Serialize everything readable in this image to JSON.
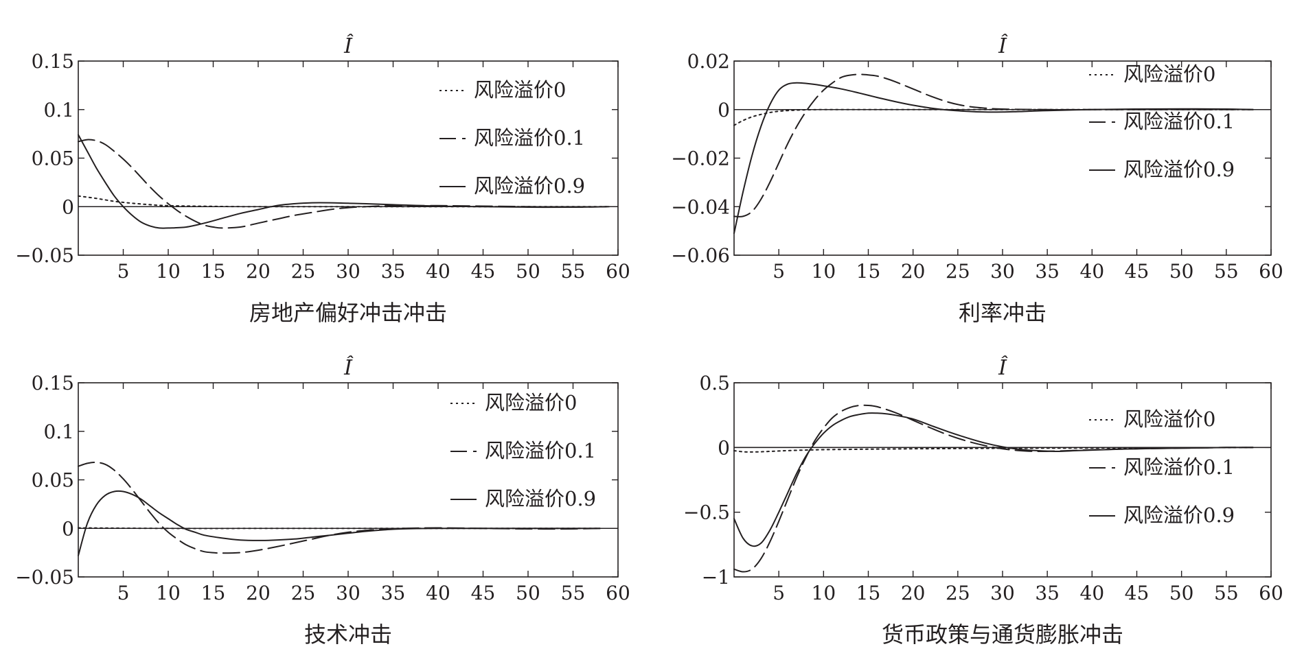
{
  "chart_data": [
    {
      "type": "line",
      "title": "Î",
      "xlabel": "房地产偏好冲击冲击",
      "ylabel": "",
      "xlim": [
        0,
        60
      ],
      "ylim": [
        -0.05,
        0.15
      ],
      "x_ticks": [
        5,
        10,
        15,
        20,
        25,
        30,
        35,
        40,
        45,
        50,
        55,
        60
      ],
      "x_tick_labels": [
        "5",
        "10",
        "15",
        "20",
        "25",
        "30",
        "35",
        "40",
        "45",
        "50",
        "55",
        "60"
      ],
      "y_ticks": [
        0.15,
        0.1,
        0.05,
        0,
        -0.05
      ],
      "y_tick_labels": [
        "0.15",
        "0.1",
        "0.05",
        "0",
        "−0.05"
      ],
      "legend_position": "top-right",
      "series": [
        {
          "name": "风险溢价0",
          "style": "dotted",
          "x": [
            0,
            2,
            4,
            6,
            8,
            10,
            15,
            20,
            30,
            40,
            50,
            59
          ],
          "values": [
            0.011,
            0.0085,
            0.0055,
            0.0035,
            0.002,
            0.001,
            0.0003,
            0,
            0,
            0,
            0,
            0
          ]
        },
        {
          "name": "风险溢价0.1",
          "style": "dashdot",
          "x": [
            0,
            1,
            2,
            3,
            4,
            5,
            6,
            7,
            8,
            9,
            10,
            11,
            12,
            13,
            14,
            15,
            16,
            18,
            20,
            22,
            24,
            26,
            28,
            30,
            32,
            35,
            40,
            45,
            50,
            55,
            59
          ],
          "values": [
            0.067,
            0.069,
            0.068,
            0.064,
            0.057,
            0.049,
            0.04,
            0.03,
            0.02,
            0.011,
            0.003,
            -0.004,
            -0.01,
            -0.015,
            -0.019,
            -0.021,
            -0.022,
            -0.021,
            -0.017,
            -0.013,
            -0.009,
            -0.006,
            -0.003,
            -0.001,
            0,
            0.001,
            0.001,
            0.0005,
            0,
            -0.0005,
            0
          ]
        },
        {
          "name": "风险溢价0.9",
          "style": "solid",
          "x": [
            0,
            1,
            2,
            3,
            4,
            5,
            6,
            7,
            8,
            9,
            10,
            12,
            14,
            16,
            18,
            20,
            22,
            24,
            26,
            28,
            30,
            32,
            35,
            40,
            45,
            50,
            55,
            59
          ],
          "values": [
            0.074,
            0.057,
            0.04,
            0.025,
            0.011,
            0,
            -0.009,
            -0.016,
            -0.02,
            -0.022,
            -0.022,
            -0.021,
            -0.017,
            -0.012,
            -0.007,
            -0.003,
            0.001,
            0.003,
            0.004,
            0.004,
            0.0035,
            0.003,
            0.002,
            0.0005,
            0,
            -0.0005,
            -0.0005,
            0
          ]
        }
      ]
    },
    {
      "type": "line",
      "title": "Î",
      "xlabel": "利率冲击",
      "ylabel": "",
      "xlim": [
        0,
        60
      ],
      "ylim": [
        -0.06,
        0.02
      ],
      "x_ticks": [
        5,
        10,
        15,
        20,
        25,
        30,
        35,
        40,
        45,
        50,
        55,
        60
      ],
      "x_tick_labels": [
        "5",
        "10",
        "15",
        "20",
        "25",
        "30",
        "35",
        "40",
        "45",
        "50",
        "55",
        "60"
      ],
      "y_ticks": [
        0.02,
        0,
        -0.02,
        -0.04,
        -0.06
      ],
      "y_tick_labels": [
        "0.02",
        "0",
        "−0.02",
        "−0.04",
        "−0.06"
      ],
      "legend_position": "top-right",
      "series": [
        {
          "name": "风险溢价0",
          "style": "dotted",
          "x": [
            0,
            1,
            2,
            3,
            4,
            5,
            6,
            8,
            10,
            15,
            20,
            30,
            40,
            50,
            58
          ],
          "values": [
            -0.0065,
            -0.0045,
            -0.003,
            -0.002,
            -0.0012,
            -0.0007,
            -0.0004,
            -0.0001,
            0,
            0,
            0,
            0,
            0,
            0,
            0
          ]
        },
        {
          "name": "风险溢价0.1",
          "style": "dashdot",
          "x": [
            0,
            1,
            2,
            3,
            4,
            5,
            6,
            7,
            8,
            9,
            10,
            11,
            12,
            13,
            14,
            15,
            16,
            17,
            18,
            20,
            22,
            24,
            26,
            28,
            30,
            35,
            40,
            45,
            50,
            58
          ],
          "values": [
            -0.044,
            -0.044,
            -0.042,
            -0.037,
            -0.03,
            -0.022,
            -0.014,
            -0.007,
            -0.001,
            0.004,
            0.008,
            0.011,
            0.0133,
            0.0142,
            0.0145,
            0.0143,
            0.0138,
            0.0128,
            0.0115,
            0.0085,
            0.0055,
            0.003,
            0.0014,
            0.0006,
            0.0002,
            0,
            0,
            0,
            0,
            0
          ]
        },
        {
          "name": "风险溢价0.9",
          "style": "solid",
          "x": [
            0,
            1,
            2,
            3,
            4,
            5,
            6,
            7,
            8,
            9,
            10,
            12,
            14,
            16,
            18,
            20,
            22,
            24,
            26,
            28,
            30,
            32,
            35,
            40,
            45,
            50,
            55,
            58
          ],
          "values": [
            -0.051,
            -0.034,
            -0.019,
            -0.007,
            0.002,
            0.008,
            0.0105,
            0.011,
            0.0108,
            0.0104,
            0.0098,
            0.0085,
            0.0068,
            0.005,
            0.0033,
            0.0018,
            0.0006,
            -0.0002,
            -0.0007,
            -0.001,
            -0.001,
            -0.0008,
            -0.0004,
            0,
            0.0002,
            0.0003,
            0.0002,
            0
          ]
        }
      ]
    },
    {
      "type": "line",
      "title": "Î",
      "xlabel": "技术冲击",
      "ylabel": "",
      "xlim": [
        0,
        60
      ],
      "ylim": [
        -0.05,
        0.15
      ],
      "x_ticks": [
        5,
        10,
        15,
        20,
        25,
        30,
        35,
        40,
        45,
        50,
        55,
        60
      ],
      "x_tick_labels": [
        "5",
        "10",
        "15",
        "20",
        "25",
        "30",
        "35",
        "40",
        "45",
        "50",
        "55",
        "60"
      ],
      "y_ticks": [
        0.15,
        0.1,
        0.05,
        0,
        -0.05
      ],
      "y_tick_labels": [
        "0.15",
        "0.1",
        "0.05",
        "0",
        "−0.05"
      ],
      "legend_position": "top-right",
      "series": [
        {
          "name": "风险溢价0",
          "style": "dotted",
          "x": [
            0,
            10,
            20,
            30,
            40,
            50,
            58
          ],
          "values": [
            0.0005,
            0,
            0,
            0,
            0,
            0,
            0
          ]
        },
        {
          "name": "风险溢价0.1",
          "style": "dashdot",
          "x": [
            0,
            1,
            2,
            3,
            4,
            5,
            6,
            7,
            8,
            9,
            10,
            11,
            12,
            13,
            14,
            15,
            16,
            18,
            20,
            22,
            24,
            26,
            28,
            30,
            32,
            34,
            36,
            40,
            45,
            50,
            55,
            58
          ],
          "values": [
            0.064,
            0.067,
            0.068,
            0.066,
            0.06,
            0.051,
            0.04,
            0.028,
            0.016,
            0.005,
            -0.004,
            -0.011,
            -0.017,
            -0.021,
            -0.024,
            -0.025,
            -0.0255,
            -0.025,
            -0.0225,
            -0.019,
            -0.015,
            -0.011,
            -0.007,
            -0.004,
            -0.002,
            -0.001,
            0,
            0.0005,
            0,
            -0.0005,
            -0.0005,
            0
          ]
        },
        {
          "name": "风险溢价0.9",
          "style": "solid",
          "x": [
            0,
            1,
            2,
            3,
            4,
            5,
            6,
            7,
            8,
            9,
            10,
            11,
            12,
            13,
            14,
            16,
            18,
            20,
            22,
            24,
            26,
            28,
            30,
            32,
            34,
            36,
            40,
            45,
            50,
            55,
            58
          ],
          "values": [
            -0.028,
            0.005,
            0.024,
            0.034,
            0.038,
            0.038,
            0.035,
            0.03,
            0.023,
            0.016,
            0.01,
            0.004,
            -0.001,
            -0.004,
            -0.007,
            -0.01,
            -0.012,
            -0.0125,
            -0.012,
            -0.011,
            -0.009,
            -0.007,
            -0.005,
            -0.003,
            -0.0015,
            -0.0005,
            0,
            0,
            0,
            0,
            0
          ]
        }
      ]
    },
    {
      "type": "line",
      "title": "Î",
      "xlabel": "货币政策与通货膨胀冲击",
      "ylabel": "",
      "xlim": [
        0,
        60
      ],
      "ylim": [
        -1,
        0.5
      ],
      "x_ticks": [
        5,
        10,
        15,
        20,
        25,
        30,
        35,
        40,
        45,
        50,
        55,
        60
      ],
      "x_tick_labels": [
        "5",
        "10",
        "15",
        "20",
        "25",
        "30",
        "35",
        "40",
        "45",
        "50",
        "55",
        "60"
      ],
      "y_ticks": [
        0.5,
        0,
        -0.5,
        -1
      ],
      "y_tick_labels": [
        "0.5",
        "0",
        "−0.5",
        "−1"
      ],
      "legend_position": "right",
      "series": [
        {
          "name": "风险溢价0",
          "style": "dotted",
          "x": [
            0,
            1,
            2,
            3,
            4,
            5,
            6,
            8,
            10,
            15,
            20,
            25,
            30,
            35,
            40,
            50,
            58
          ],
          "values": [
            -0.025,
            -0.033,
            -0.035,
            -0.033,
            -0.03,
            -0.027,
            -0.024,
            -0.02,
            -0.017,
            -0.013,
            -0.01,
            -0.008,
            -0.006,
            -0.005,
            -0.004,
            -0.002,
            0
          ]
        },
        {
          "name": "风险溢价0.1",
          "style": "dashdot",
          "x": [
            0,
            1,
            2,
            3,
            4,
            5,
            6,
            7,
            8,
            9,
            10,
            11,
            12,
            13,
            14,
            15,
            16,
            18,
            20,
            22,
            24,
            26,
            28,
            30,
            32,
            34,
            36,
            40,
            45,
            50,
            55,
            58
          ],
          "values": [
            -0.94,
            -0.96,
            -0.94,
            -0.86,
            -0.73,
            -0.57,
            -0.4,
            -0.23,
            -0.08,
            0.05,
            0.15,
            0.23,
            0.28,
            0.31,
            0.325,
            0.325,
            0.315,
            0.27,
            0.21,
            0.15,
            0.095,
            0.05,
            0.015,
            -0.01,
            -0.025,
            -0.03,
            -0.028,
            -0.018,
            -0.01,
            -0.005,
            0,
            0
          ]
        },
        {
          "name": "风险溢价0.9",
          "style": "solid",
          "x": [
            0,
            1,
            2,
            3,
            4,
            5,
            6,
            7,
            8,
            9,
            10,
            11,
            12,
            13,
            14,
            15,
            16,
            17,
            18,
            20,
            22,
            24,
            26,
            28,
            30,
            32,
            34,
            36,
            38,
            40,
            45,
            50,
            55,
            58
          ],
          "values": [
            -0.55,
            -0.7,
            -0.76,
            -0.74,
            -0.64,
            -0.5,
            -0.35,
            -0.2,
            -0.07,
            0.03,
            0.11,
            0.17,
            0.21,
            0.24,
            0.255,
            0.265,
            0.265,
            0.26,
            0.25,
            0.22,
            0.17,
            0.12,
            0.075,
            0.035,
            0.005,
            -0.015,
            -0.025,
            -0.03,
            -0.025,
            -0.02,
            -0.01,
            -0.005,
            0,
            0
          ]
        }
      ]
    }
  ]
}
